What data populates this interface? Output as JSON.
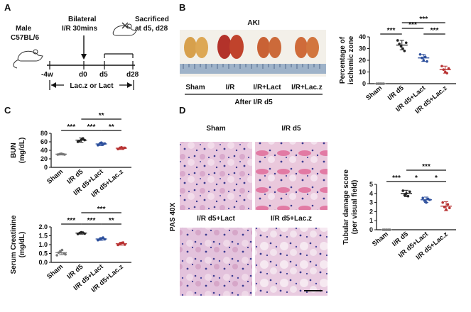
{
  "figure": {
    "panels": {
      "A": {
        "letter": "A",
        "subject_line1": "Male",
        "subject_line2": "C57BL/6",
        "step1_line1": "Bilateral",
        "step1_line2": "I/R 30mins",
        "step2_line1": "Sacrificed",
        "step2_line2": "at d5, d28",
        "timepoints": [
          "-4w",
          "d0",
          "d5",
          "d28"
        ],
        "treatment_label": "Lac.z or Lact"
      },
      "B": {
        "letter": "B",
        "photo_title": "AKI",
        "group_labels": [
          "Sham",
          "I/R",
          "I/R+Lact",
          "I/R+Lac.z"
        ],
        "caption": "After I/R d5"
      },
      "C": {
        "letter": "C"
      },
      "D": {
        "letter": "D",
        "stain_label": "PAS 40X",
        "micrograph_titles": [
          "Sham",
          "I/R d5",
          "I/R d5+Lact",
          "I/R d5+Lac.z"
        ]
      }
    }
  },
  "chart_data": [
    {
      "type": "scatter",
      "panel": "B",
      "ylabel_line1": "Percentage of",
      "ylabel_line2": "ischemic zone",
      "categories": [
        "Sham",
        "I/R d5",
        "I/R d5+Lact",
        "I/R d5+Lac.z"
      ],
      "ylim": [
        0,
        40
      ],
      "yticks": [
        "0",
        "10",
        "20",
        "30",
        "40"
      ],
      "means": [
        0,
        33,
        22,
        12
      ],
      "sd": [
        0,
        4,
        3,
        3
      ],
      "points": [
        [
          0,
          0,
          0,
          0,
          0
        ],
        [
          37,
          34,
          32,
          30,
          28,
          35
        ],
        [
          25,
          22,
          20,
          23,
          19
        ],
        [
          15,
          12,
          10,
          9,
          13
        ]
      ],
      "colors": [
        "#777777",
        "#222222",
        "#2c4f9c",
        "#b83232"
      ],
      "significance": [
        "***",
        "***",
        "***",
        "***"
      ]
    },
    {
      "type": "scatter",
      "panel": "C",
      "ylabel_line1": "BUN",
      "ylabel_line2": "(mg/dL)",
      "categories": [
        "Sham",
        "I/R d5",
        "I/R d5+Lact",
        "I/R d5+Lac.z"
      ],
      "ylim": [
        0,
        80
      ],
      "yticks": [
        "0",
        "20",
        "40",
        "60",
        "80"
      ],
      "means": [
        31,
        64,
        55,
        45
      ],
      "sd": [
        2,
        5,
        4,
        3
      ],
      "points": [
        [
          30,
          31,
          32,
          31,
          30
        ],
        [
          60,
          62,
          65,
          68,
          64
        ],
        [
          52,
          55,
          58,
          54,
          56
        ],
        [
          43,
          45,
          47,
          44,
          46
        ]
      ],
      "colors": [
        "#777777",
        "#222222",
        "#2c4f9c",
        "#b83232"
      ],
      "significance": [
        "***",
        "***",
        "**",
        "**"
      ]
    },
    {
      "type": "scatter",
      "panel": "C",
      "ylabel_line1": "Serum Creatinine",
      "ylabel_line2": "(mg/dL)",
      "categories": [
        "Sham",
        "I/R d5",
        "I/R d5+Lact",
        "I/R d5+Lac.z"
      ],
      "ylim": [
        0,
        2
      ],
      "yticks": [
        "0.0",
        "0.5",
        "1.0",
        "1.5",
        "2.0"
      ],
      "means": [
        0.55,
        1.65,
        1.32,
        1.05
      ],
      "sd": [
        0.12,
        0.06,
        0.08,
        0.08
      ],
      "points": [
        [
          0.4,
          0.55,
          0.6,
          0.7,
          0.5,
          0.45
        ],
        [
          1.6,
          1.65,
          1.7,
          1.68,
          1.62
        ],
        [
          1.25,
          1.3,
          1.35,
          1.4,
          1.3
        ],
        [
          0.98,
          1.05,
          1.1,
          1.12,
          1.0
        ]
      ],
      "colors": [
        "#777777",
        "#222222",
        "#2c4f9c",
        "#b83232"
      ],
      "significance": [
        "***",
        "***",
        "**",
        "***"
      ]
    },
    {
      "type": "scatter",
      "panel": "D",
      "ylabel_line1": "Tubular damage score",
      "ylabel_line2": "(per visual field)",
      "categories": [
        "Sham",
        "I/R d5",
        "I/R d5+Lact",
        "I/R d5+Lac.z"
      ],
      "ylim": [
        0,
        5
      ],
      "yticks": [
        "0",
        "1",
        "2",
        "3",
        "4",
        "5"
      ],
      "means": [
        0,
        4.0,
        3.3,
        2.6
      ],
      "sd": [
        0,
        0.35,
        0.3,
        0.5
      ],
      "points": [
        [
          0,
          0,
          0,
          0,
          0
        ],
        [
          4.3,
          3.8,
          4.0,
          3.7,
          4.2
        ],
        [
          3.5,
          3.2,
          3.0,
          3.4,
          3.3
        ],
        [
          3.0,
          2.5,
          2.2,
          2.8,
          2.4
        ]
      ],
      "colors": [
        "#777777",
        "#222222",
        "#2c4f9c",
        "#b83232"
      ],
      "significance": [
        "***",
        "*",
        "*",
        "***"
      ]
    }
  ]
}
